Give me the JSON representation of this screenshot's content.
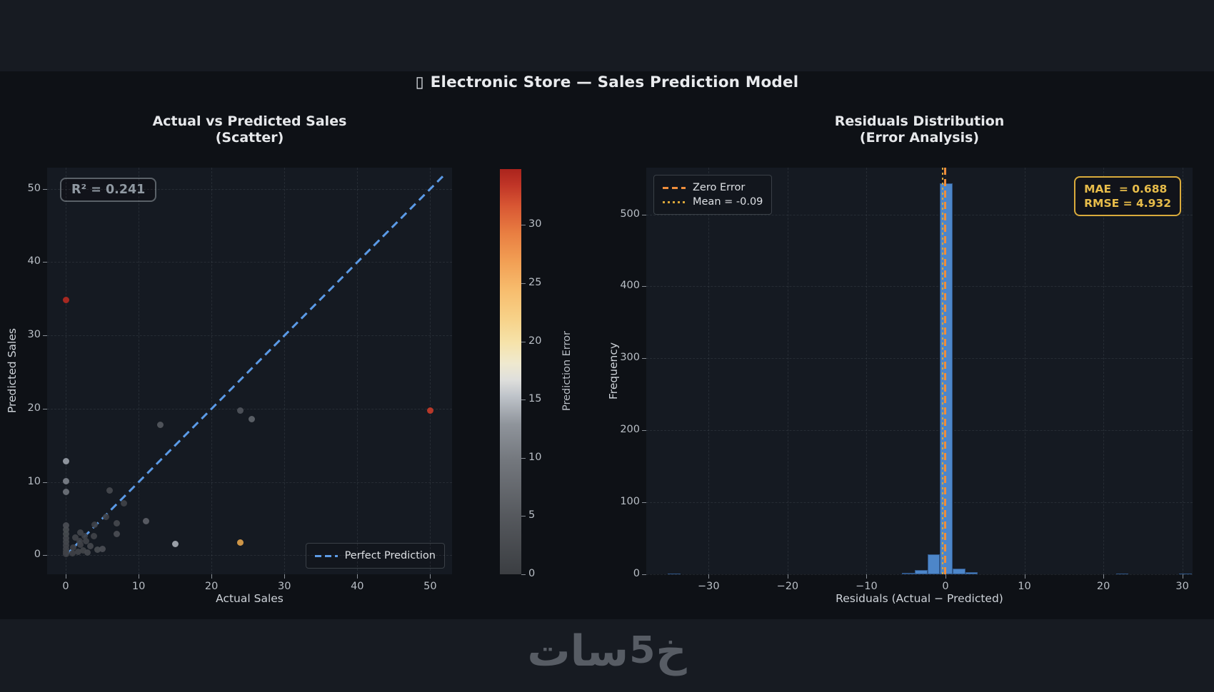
{
  "header": {
    "glyph": "▯",
    "title": "Electronic Store — Sales Prediction Model"
  },
  "watermark": {
    "part1": "خ",
    "digit": "5",
    "part2": "سات"
  },
  "colors": {
    "page_band": "#171b22",
    "figure_background": "#0e1116",
    "axes_background": "#151a22",
    "histogram_bar": "#4d86c9",
    "perfect_prediction_line": "#5b9ae6",
    "zero_error_line": "#ef8e3c",
    "mean_line": "#d9a63a",
    "stats_accent": "#d9ab3c"
  },
  "chart_data": [
    {
      "type": "scatter",
      "title_line1": "Actual vs Predicted Sales",
      "title_line2": "(Scatter)",
      "xlabel": "Actual Sales",
      "ylabel": "Predicted Sales",
      "xlim": [
        -2.55,
        53.0
      ],
      "ylim": [
        -2.6,
        52.9
      ],
      "xticks": [
        0,
        10,
        20,
        30,
        40,
        50
      ],
      "yticks": [
        0,
        10,
        20,
        30,
        40,
        50
      ],
      "grid": true,
      "annotation": "R² = 0.241",
      "legend": [
        {
          "label": "Perfect Prediction",
          "style": "dashed",
          "color": "#5b9ae6"
        }
      ],
      "reference_line": {
        "from": [
          0,
          0
        ],
        "to": [
          51.8,
          51.8
        ],
        "label": "Perfect Prediction"
      },
      "points": [
        {
          "x": 0,
          "y": 0.2,
          "error": 0.2,
          "color": "#3f4247"
        },
        {
          "x": 0,
          "y": 0.5,
          "error": 0.5,
          "color": "#3f4247"
        },
        {
          "x": 0,
          "y": 0.9,
          "error": 0.9,
          "color": "#404348"
        },
        {
          "x": 0,
          "y": 1.3,
          "error": 1.3,
          "color": "#414449"
        },
        {
          "x": 0,
          "y": 1.8,
          "error": 1.8,
          "color": "#43464b"
        },
        {
          "x": 0,
          "y": 2.3,
          "error": 2.3,
          "color": "#44474c"
        },
        {
          "x": 0,
          "y": 2.9,
          "error": 2.9,
          "color": "#464a4f"
        },
        {
          "x": 0,
          "y": 3.5,
          "error": 3.5,
          "color": "#484c51"
        },
        {
          "x": 0,
          "y": 4.1,
          "error": 4.1,
          "color": "#4a4e54"
        },
        {
          "x": 0.9,
          "y": 0.3,
          "error": 0.6,
          "color": "#3f4247"
        },
        {
          "x": 1,
          "y": 1.1,
          "error": 0.1,
          "color": "#3e4146"
        },
        {
          "x": 1.3,
          "y": 2.4,
          "error": 1.1,
          "color": "#414449"
        },
        {
          "x": 1.7,
          "y": 0.5,
          "error": 1.2,
          "color": "#414449"
        },
        {
          "x": 1.9,
          "y": 1.9,
          "error": 0,
          "color": "#3e4146"
        },
        {
          "x": 2,
          "y": 1.4,
          "error": 0.6,
          "color": "#3f4247"
        },
        {
          "x": 2,
          "y": 3.1,
          "error": 1.1,
          "color": "#414449"
        },
        {
          "x": 2.4,
          "y": 0.7,
          "error": 1.7,
          "color": "#424549"
        },
        {
          "x": 2.6,
          "y": 2.6,
          "error": 0,
          "color": "#3e4146"
        },
        {
          "x": 2.8,
          "y": 1.9,
          "error": 0.9,
          "color": "#404348"
        },
        {
          "x": 3,
          "y": 0.4,
          "error": 2.6,
          "color": "#45484d"
        },
        {
          "x": 3.4,
          "y": 1.2,
          "error": 2.2,
          "color": "#44474c"
        },
        {
          "x": 3.9,
          "y": 2.6,
          "error": 1.3,
          "color": "#414449"
        },
        {
          "x": 4.4,
          "y": 0.8,
          "error": 3.6,
          "color": "#484c51"
        },
        {
          "x": 5,
          "y": 0.9,
          "error": 4.1,
          "color": "#4a4e54"
        },
        {
          "x": 4,
          "y": 4.2,
          "error": 0.2,
          "color": "#3e4146"
        },
        {
          "x": 5.5,
          "y": 5.2,
          "error": 0.3,
          "color": "#3f4247"
        },
        {
          "x": 7,
          "y": 4.4,
          "error": 2.6,
          "color": "#45484d"
        },
        {
          "x": 7,
          "y": 2.9,
          "error": 4.1,
          "color": "#4a4e54"
        },
        {
          "x": 6,
          "y": 8.8,
          "error": 2.8,
          "color": "#46494f"
        },
        {
          "x": 8,
          "y": 7.1,
          "error": 0.9,
          "color": "#404348"
        },
        {
          "x": 11,
          "y": 4.7,
          "error": 6.3,
          "color": "#5b5f66"
        },
        {
          "x": 0,
          "y": 8.6,
          "error": 8.6,
          "color": "#6d727a"
        },
        {
          "x": 0,
          "y": 10.1,
          "error": 10.1,
          "color": "#7b8089"
        },
        {
          "x": 0,
          "y": 12.8,
          "error": 12.8,
          "color": "#979da6"
        },
        {
          "x": 13,
          "y": 17.8,
          "error": 4.8,
          "color": "#53575e"
        },
        {
          "x": 15,
          "y": 1.5,
          "error": 13.5,
          "color": "#a4aab2"
        },
        {
          "x": 24,
          "y": 19.7,
          "error": 4.3,
          "color": "#50545b"
        },
        {
          "x": 25.5,
          "y": 18.6,
          "error": 6.9,
          "color": "#5f646b"
        },
        {
          "x": 24,
          "y": 1.7,
          "error": 22.3,
          "color": "#dd9f4a"
        },
        {
          "x": 50,
          "y": 19.7,
          "error": 30.3,
          "color": "#c43b2a"
        },
        {
          "x": 0,
          "y": 34.8,
          "error": 34.8,
          "color": "#b12a21"
        }
      ],
      "colorbar": {
        "label": "Prediction Error",
        "ticks": [
          0,
          5,
          10,
          15,
          20,
          25,
          30
        ],
        "vmin": 0,
        "vmax": 34.8,
        "gradient_bottom_to_top": [
          {
            "color": "#3b3e42",
            "pos": 0
          },
          {
            "color": "#55585d",
            "pos": 14
          },
          {
            "color": "#73777d",
            "pos": 28
          },
          {
            "color": "#8f949b",
            "pos": 37
          },
          {
            "color": "#bfc4ca",
            "pos": 44
          },
          {
            "color": "#dfdfdc",
            "pos": 48
          },
          {
            "color": "#efe9cf",
            "pos": 52
          },
          {
            "color": "#f6e3ab",
            "pos": 57
          },
          {
            "color": "#f7d289",
            "pos": 63
          },
          {
            "color": "#f7bd6e",
            "pos": 70
          },
          {
            "color": "#f2a055",
            "pos": 77
          },
          {
            "color": "#e97f42",
            "pos": 84
          },
          {
            "color": "#d85633",
            "pos": 91
          },
          {
            "color": "#c03527",
            "pos": 96
          },
          {
            "color": "#ab241d",
            "pos": 100
          }
        ]
      }
    },
    {
      "type": "bar",
      "subtype": "histogram",
      "title_line1": "Residuals Distribution",
      "title_line2": "(Error Analysis)",
      "xlabel": "Residuals (Actual − Predicted)",
      "ylabel": "Frequency",
      "xlim": [
        -37.9,
        31.3
      ],
      "ylim": [
        0,
        565
      ],
      "xticks": [
        -30,
        -20,
        -10,
        0,
        10,
        20,
        30
      ],
      "yticks": [
        0,
        100,
        200,
        300,
        400,
        500
      ],
      "grid": true,
      "bins": [
        {
          "x0": -35.2,
          "x1": -33.6,
          "frequency": 1
        },
        {
          "x0": -5.5,
          "x1": -3.9,
          "frequency": 2
        },
        {
          "x0": -3.9,
          "x1": -2.3,
          "frequency": 6
        },
        {
          "x0": -2.3,
          "x1": -0.7,
          "frequency": 28
        },
        {
          "x0": -0.7,
          "x1": 0.9,
          "frequency": 543
        },
        {
          "x0": 0.9,
          "x1": 2.5,
          "frequency": 8
        },
        {
          "x0": 2.5,
          "x1": 4.1,
          "frequency": 3
        },
        {
          "x0": 21.6,
          "x1": 23.2,
          "frequency": 1
        },
        {
          "x0": 29.6,
          "x1": 31.2,
          "frequency": 1
        }
      ],
      "lines": [
        {
          "label": "Zero Error",
          "x": 0,
          "style": "dashed",
          "color": "#ef8e3c"
        },
        {
          "label": "Mean = -0.09",
          "x": -0.09,
          "style": "dotted",
          "color": "#d9a63a"
        }
      ],
      "legend": [
        {
          "label": "Zero Error",
          "style": "dashed",
          "color": "#ef8e3c"
        },
        {
          "label": "Mean = -0.09",
          "style": "dotted",
          "color": "#d9a63a"
        }
      ],
      "stats_box": {
        "mae_line": "MAE  = 0.688",
        "rmse_line": "RMSE = 4.932",
        "mae": 0.688,
        "rmse": 4.932
      }
    }
  ]
}
